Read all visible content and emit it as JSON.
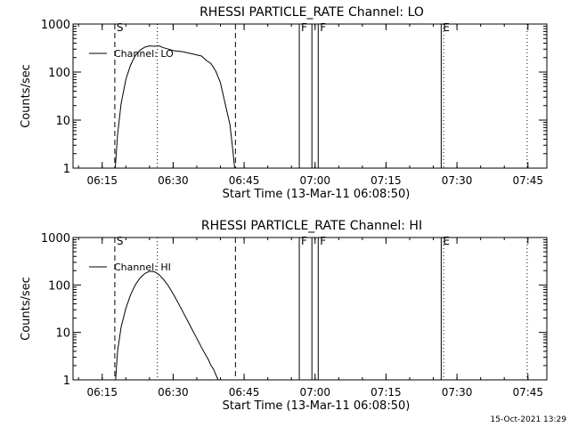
{
  "footer": {
    "timestamp": "15-Oct-2021 13:29"
  },
  "chart_data": [
    {
      "type": "line",
      "title": "RHESSI PARTICLE_RATE Channel: LO",
      "xlabel": "Start Time (13-Mar-11 06:08:50)",
      "ylabel": "Counts/sec",
      "y_scale": "log",
      "ylim": [
        1,
        1000
      ],
      "xlim": [
        "06:08:50",
        "07:49:00"
      ],
      "x_ticks": [
        "06:15",
        "06:30",
        "06:45",
        "07:00",
        "07:15",
        "07:30",
        "07:45"
      ],
      "y_ticks": [
        "1",
        "10",
        "100",
        "1000"
      ],
      "legend": {
        "placement": "top-left",
        "entries": [
          "Channel: LO"
        ]
      },
      "markers": [
        {
          "label": "S",
          "time": "06:17:40",
          "style": "dashed"
        },
        {
          "label": "",
          "time": "06:43:10",
          "style": "dashed"
        },
        {
          "label": "",
          "time": "06:26:40",
          "style": "dotted"
        },
        {
          "label": "F",
          "time": "06:56:40",
          "style": "solid"
        },
        {
          "label": "",
          "time": "07:00:40",
          "style": "solid"
        },
        {
          "label": "",
          "time": "06:59:20",
          "style": "solid"
        },
        {
          "label": "F",
          "time": "07:00:40",
          "style": "none"
        },
        {
          "label": "E",
          "time": "07:26:40",
          "style": "solid"
        },
        {
          "label": "",
          "time": "07:27:10",
          "style": "dotted"
        },
        {
          "label": "",
          "time": "07:44:50",
          "style": "dotted"
        }
      ],
      "series": [
        {
          "name": "Channel: LO",
          "x": [
            "06:17:45",
            "06:18:15",
            "06:19:00",
            "06:20:00",
            "06:21:00",
            "06:22:00",
            "06:23:00",
            "06:24:00",
            "06:25:00",
            "06:26:00",
            "06:27:00",
            "06:28:00",
            "06:29:00",
            "06:30:00",
            "06:32:00",
            "06:34:00",
            "06:36:00",
            "06:37:00",
            "06:38:00",
            "06:39:00",
            "06:40:00",
            "06:41:00",
            "06:42:00",
            "06:42:30",
            "06:43:00"
          ],
          "values": [
            1,
            5,
            22,
            70,
            140,
            220,
            285,
            330,
            350,
            345,
            350,
            320,
            300,
            280,
            265,
            240,
            215,
            175,
            150,
            105,
            60,
            22,
            8,
            3,
            1
          ]
        }
      ]
    },
    {
      "type": "line",
      "title": "RHESSI PARTICLE_RATE Channel: HI",
      "xlabel": "Start Time (13-Mar-11 06:08:50)",
      "ylabel": "Counts/sec",
      "y_scale": "log",
      "ylim": [
        1,
        1000
      ],
      "xlim": [
        "06:08:50",
        "07:49:00"
      ],
      "x_ticks": [
        "06:15",
        "06:30",
        "06:45",
        "07:00",
        "07:15",
        "07:30",
        "07:45"
      ],
      "y_ticks": [
        "1",
        "10",
        "100",
        "1000"
      ],
      "legend": {
        "placement": "top-left",
        "entries": [
          "Channel: HI"
        ]
      },
      "markers": [
        {
          "label": "S",
          "time": "06:17:40",
          "style": "dashed"
        },
        {
          "label": "",
          "time": "06:43:10",
          "style": "dashed"
        },
        {
          "label": "",
          "time": "06:26:40",
          "style": "dotted"
        },
        {
          "label": "F",
          "time": "06:56:40",
          "style": "solid"
        },
        {
          "label": "",
          "time": "07:00:40",
          "style": "solid"
        },
        {
          "label": "",
          "time": "06:59:20",
          "style": "solid"
        },
        {
          "label": "F",
          "time": "07:00:40",
          "style": "none"
        },
        {
          "label": "E",
          "time": "07:26:40",
          "style": "solid"
        },
        {
          "label": "",
          "time": "07:27:10",
          "style": "dotted"
        },
        {
          "label": "",
          "time": "07:44:50",
          "style": "dotted"
        }
      ],
      "series": [
        {
          "name": "Channel: HI",
          "x": [
            "06:17:50",
            "06:18:15",
            "06:19:00",
            "06:20:00",
            "06:21:00",
            "06:22:00",
            "06:23:00",
            "06:24:00",
            "06:25:00",
            "06:26:00",
            "06:27:00",
            "06:28:00",
            "06:29:00",
            "06:30:00",
            "06:31:00",
            "06:32:00",
            "06:33:00",
            "06:34:00",
            "06:35:00",
            "06:36:00",
            "06:37:00",
            "06:37:30",
            "06:38:00",
            "06:38:30",
            "06:39:00",
            "06:39:30"
          ],
          "values": [
            1,
            4,
            13,
            32,
            62,
            100,
            140,
            175,
            195,
            190,
            165,
            130,
            95,
            65,
            43,
            28,
            18,
            11.5,
            7.5,
            4.8,
            3.2,
            2.6,
            2,
            1.7,
            1.3,
            1
          ]
        }
      ]
    }
  ]
}
